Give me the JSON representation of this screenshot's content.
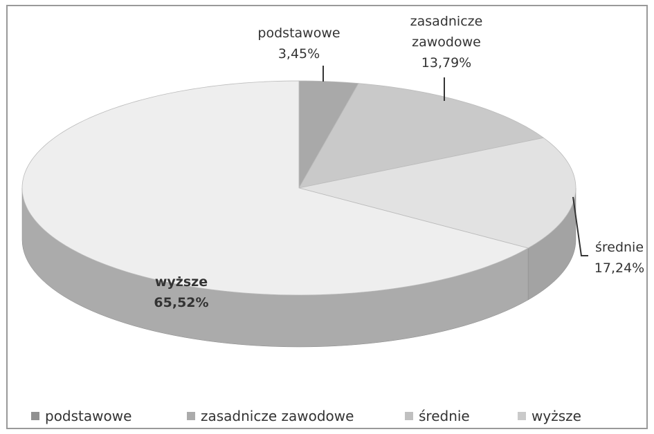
{
  "chart_data": {
    "type": "pie3d",
    "categories": [
      "podstawowe",
      "zasadnicze zawodowe",
      "średnie",
      "wyższe"
    ],
    "values": [
      3.45,
      13.79,
      17.24,
      65.52
    ],
    "value_labels": [
      "3,45%",
      "13,79%",
      "17,24%",
      "65,52%"
    ],
    "colors": [
      "#a9a9a9",
      "#c9c9c9",
      "#e2e2e2",
      "#eeeeee"
    ],
    "legend": "bottom"
  }
}
